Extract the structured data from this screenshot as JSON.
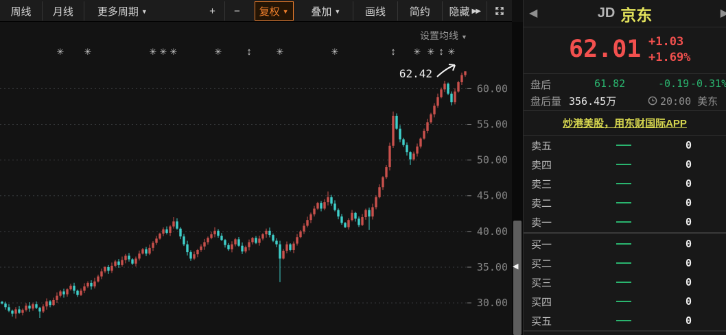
{
  "colors": {
    "up_candle": "#c9504c",
    "down_candle": "#3fd0cb",
    "accent_orange": "#ef7f2b",
    "quote_red": "#f2504e",
    "quote_green": "#2ab56f",
    "name_yellow": "#e3e35c",
    "promo_yellow": "#d6d64f",
    "grid": "#3b3e41",
    "axis_text": "#858585"
  },
  "icons": {
    "caret_down": "▼",
    "prev": "◀",
    "next": "▶",
    "hide_suffix": "▶▶",
    "collapse_left": "◀",
    "marker_star": "✳",
    "marker_updown": "↕"
  },
  "toolbar": {
    "buttons": [
      {
        "id": "weekly",
        "label": "周线"
      },
      {
        "id": "monthly",
        "label": "月线"
      },
      {
        "id": "more-periods",
        "label": "更多周期",
        "caret": true
      },
      {
        "id": "zoom-in",
        "label": "+"
      },
      {
        "id": "zoom-out",
        "label": "−"
      },
      {
        "id": "adjust",
        "label": "复权",
        "caret": true,
        "active": true
      },
      {
        "id": "overlay",
        "label": "叠加",
        "caret": true
      },
      {
        "id": "draw-line",
        "label": "画线"
      },
      {
        "id": "simple",
        "label": "简约"
      },
      {
        "id": "hide",
        "label": "隐藏",
        "suffix": "▶▶"
      },
      {
        "id": "fullscreen",
        "icon": "expand"
      }
    ],
    "ma_settings_label": "设置均线"
  },
  "chart_data": {
    "type": "candlestick",
    "symbol": "JD",
    "period": "weekly",
    "ylim": [
      25.5,
      63.3
    ],
    "y_ticks": [
      60,
      55,
      50,
      45,
      40,
      35,
      30
    ],
    "y_tick_labels": [
      "60.00",
      "55.00",
      "50.00",
      "45.00",
      "40.00",
      "35.00",
      "30.00"
    ],
    "annotation": {
      "text": "62.42",
      "value": 62.42
    },
    "closes": [
      29.9,
      29.4,
      28.9,
      28.5,
      29.1,
      28.6,
      29.0,
      29.6,
      29.2,
      29.8,
      29.3,
      28.8,
      29.5,
      30.2,
      29.7,
      30.4,
      31.0,
      31.6,
      31.2,
      31.9,
      32.4,
      31.7,
      31.1,
      31.7,
      32.3,
      32.8,
      32.3,
      33.0,
      33.7,
      34.4,
      35.0,
      34.5,
      35.2,
      35.8,
      35.3,
      36.0,
      36.6,
      36.1,
      35.5,
      36.2,
      36.9,
      37.5,
      36.9,
      37.7,
      38.4,
      39.0,
      39.7,
      40.3,
      39.8,
      40.7,
      41.4,
      40.4,
      39.3,
      38.2,
      37.1,
      36.2,
      36.8,
      37.4,
      37.9,
      38.5,
      39.1,
      39.6,
      40.1,
      39.4,
      38.8,
      38.1,
      37.5,
      38.2,
      38.9,
      38.0,
      37.2,
      37.8,
      38.5,
      39.1,
      38.4,
      39.0,
      39.6,
      40.1,
      39.5,
      38.7,
      38.2,
      36.2,
      37.3,
      38.2,
      37.4,
      38.3,
      39.2,
      40.0,
      40.8,
      41.6,
      42.4,
      43.2,
      44.0,
      43.2,
      44.1,
      44.8,
      43.9,
      43.0,
      42.1,
      41.2,
      40.6,
      41.6,
      42.6,
      41.8,
      40.9,
      42.0,
      43.0,
      42.1,
      43.4,
      44.8,
      46.2,
      47.6,
      49.0,
      52.0,
      56.2,
      54.4,
      52.9,
      52.1,
      51.1,
      50.1,
      50.9,
      51.9,
      53.0,
      54.1,
      55.3,
      56.4,
      57.6,
      58.8,
      59.9,
      60.7,
      59.3,
      58.1,
      59.6,
      60.9,
      61.9,
      62.42
    ],
    "wick_low_overrides": {
      "4": 27.8,
      "11": 27.9,
      "81": 32.9,
      "107": 40.2,
      "119": 49.3
    },
    "wick_high_overrides": {
      "50": 42.0,
      "95": 45.6,
      "114": 56.8,
      "129": 61.1,
      "135": 62.42
    },
    "markers": [
      {
        "index": 17,
        "type": "star"
      },
      {
        "index": 25,
        "type": "star"
      },
      {
        "index": 44,
        "type": "star"
      },
      {
        "index": 47,
        "type": "star"
      },
      {
        "index": 50,
        "type": "star"
      },
      {
        "index": 63,
        "type": "star"
      },
      {
        "index": 72,
        "type": "updown"
      },
      {
        "index": 81,
        "type": "star"
      },
      {
        "index": 97,
        "type": "star"
      },
      {
        "index": 114,
        "type": "updown"
      },
      {
        "index": 121,
        "type": "star"
      },
      {
        "index": 125,
        "type": "star"
      },
      {
        "index": 128,
        "type": "updown"
      },
      {
        "index": 131,
        "type": "star"
      }
    ],
    "up_color": "#c9504c",
    "down_color": "#3fd0cb",
    "legend": "none",
    "grid": "dashed-horizontal"
  },
  "panel": {
    "header": {
      "symbol": "JD",
      "name": "京东"
    },
    "quote": {
      "price": "62.01",
      "change": "+1.03",
      "change_pct": "+1.69%"
    },
    "after_hours": {
      "label": "盘后",
      "price": "61.82",
      "change": "-0.19",
      "change_pct": "-0.31%"
    },
    "after_volume": {
      "label": "盘后量",
      "value": "356.45万",
      "time": "20:00 美东"
    },
    "promo": "炒港美股，用东财国际APP",
    "order_book": {
      "sell_rows": [
        {
          "label": "卖五",
          "value": "0"
        },
        {
          "label": "卖四",
          "value": "0"
        },
        {
          "label": "卖三",
          "value": "0"
        },
        {
          "label": "卖二",
          "value": "0"
        },
        {
          "label": "卖一",
          "value": "0"
        }
      ],
      "buy_rows": [
        {
          "label": "买一",
          "value": "0"
        },
        {
          "label": "买二",
          "value": "0"
        },
        {
          "label": "买三",
          "value": "0"
        },
        {
          "label": "买四",
          "value": "0"
        },
        {
          "label": "买五",
          "value": "0"
        }
      ]
    }
  }
}
